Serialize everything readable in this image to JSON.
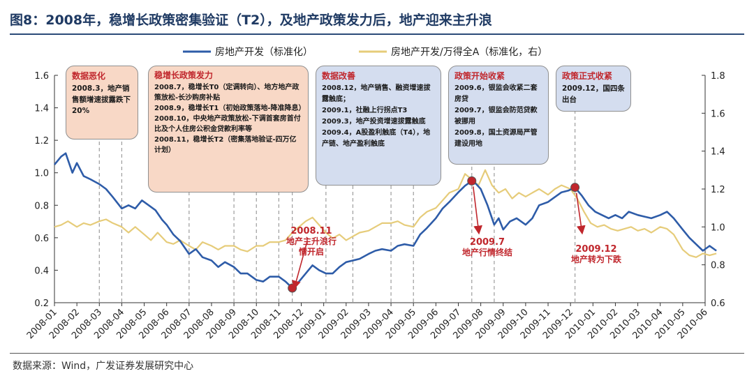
{
  "title": "图8：2008年，稳增长政策密集验证（T2），及地产政策发力后，地产迎来主升浪",
  "source": "数据来源：Wind，广发证券发展研究中心",
  "chart_data": {
    "type": "line",
    "x_labels": [
      "2008-01",
      "2008-02",
      "2008-03",
      "2008-04",
      "2008-05",
      "2008-06",
      "2008-07",
      "2008-08",
      "2008-09",
      "2008-10",
      "2008-11",
      "2008-12",
      "2009-01",
      "2009-02",
      "2009-03",
      "2009-04",
      "2009-05",
      "2009-06",
      "2009-07",
      "2009-08",
      "2009-09",
      "2009-10",
      "2009-11",
      "2009-12",
      "2010-01",
      "2010-02",
      "2010-03",
      "2010-04",
      "2010-05",
      "2010-06"
    ],
    "left_axis": {
      "ticks": [
        "0.2",
        "0.4",
        "0.6",
        "0.8",
        "1.0",
        "1.2",
        "1.4",
        "1.6"
      ],
      "ylim": [
        0.2,
        1.6
      ]
    },
    "right_axis": {
      "ticks": [
        "0.6",
        "0.8",
        "1.0",
        "1.2",
        "1.4",
        "1.6",
        "1.8"
      ],
      "ylim": [
        0.6,
        1.8
      ]
    },
    "series": [
      {
        "name": "房地产开发（标准化）",
        "axis": "left",
        "color": "#2e5ca8",
        "points": [
          [
            0,
            1.05
          ],
          [
            0.3,
            1.1
          ],
          [
            0.5,
            1.12
          ],
          [
            0.8,
            1.0
          ],
          [
            1.0,
            1.06
          ],
          [
            1.3,
            0.98
          ],
          [
            1.6,
            0.96
          ],
          [
            2.0,
            0.93
          ],
          [
            2.3,
            0.9
          ],
          [
            2.6,
            0.85
          ],
          [
            3.0,
            0.78
          ],
          [
            3.3,
            0.8
          ],
          [
            3.6,
            0.78
          ],
          [
            3.9,
            0.83
          ],
          [
            4.2,
            0.8
          ],
          [
            4.5,
            0.77
          ],
          [
            4.8,
            0.71
          ],
          [
            5.0,
            0.68
          ],
          [
            5.3,
            0.62
          ],
          [
            5.6,
            0.58
          ],
          [
            6.0,
            0.5
          ],
          [
            6.3,
            0.53
          ],
          [
            6.6,
            0.48
          ],
          [
            7.0,
            0.46
          ],
          [
            7.3,
            0.42
          ],
          [
            7.6,
            0.45
          ],
          [
            8.0,
            0.42
          ],
          [
            8.3,
            0.38
          ],
          [
            8.6,
            0.38
          ],
          [
            9.0,
            0.34
          ],
          [
            9.3,
            0.33
          ],
          [
            9.6,
            0.36
          ],
          [
            10.0,
            0.36
          ],
          [
            10.3,
            0.33
          ],
          [
            10.6,
            0.29
          ],
          [
            10.9,
            0.33
          ],
          [
            11.2,
            0.38
          ],
          [
            11.5,
            0.43
          ],
          [
            11.8,
            0.4
          ],
          [
            12.1,
            0.38
          ],
          [
            12.4,
            0.38
          ],
          [
            12.7,
            0.42
          ],
          [
            13.0,
            0.45
          ],
          [
            13.3,
            0.46
          ],
          [
            13.6,
            0.47
          ],
          [
            14.0,
            0.5
          ],
          [
            14.3,
            0.52
          ],
          [
            14.6,
            0.53
          ],
          [
            15.0,
            0.52
          ],
          [
            15.3,
            0.55
          ],
          [
            15.6,
            0.56
          ],
          [
            16.0,
            0.55
          ],
          [
            16.3,
            0.62
          ],
          [
            16.6,
            0.66
          ],
          [
            17.0,
            0.72
          ],
          [
            17.3,
            0.78
          ],
          [
            17.6,
            0.82
          ],
          [
            18.0,
            0.88
          ],
          [
            18.3,
            0.92
          ],
          [
            18.6,
            0.95
          ],
          [
            18.8,
            0.93
          ],
          [
            19.0,
            0.9
          ],
          [
            19.3,
            0.8
          ],
          [
            19.6,
            0.68
          ],
          [
            19.8,
            0.72
          ],
          [
            20.0,
            0.65
          ],
          [
            20.3,
            0.7
          ],
          [
            20.6,
            0.72
          ],
          [
            21.0,
            0.68
          ],
          [
            21.3,
            0.72
          ],
          [
            21.6,
            0.8
          ],
          [
            22.0,
            0.82
          ],
          [
            22.3,
            0.85
          ],
          [
            22.6,
            0.88
          ],
          [
            22.9,
            0.89
          ],
          [
            23.2,
            0.91
          ],
          [
            23.5,
            0.86
          ],
          [
            23.8,
            0.8
          ],
          [
            24.1,
            0.76
          ],
          [
            24.4,
            0.74
          ],
          [
            24.7,
            0.72
          ],
          [
            25.0,
            0.74
          ],
          [
            25.3,
            0.72
          ],
          [
            25.6,
            0.76
          ],
          [
            26.0,
            0.74
          ],
          [
            26.3,
            0.73
          ],
          [
            26.6,
            0.72
          ],
          [
            27.0,
            0.74
          ],
          [
            27.3,
            0.76
          ],
          [
            27.6,
            0.72
          ],
          [
            28.0,
            0.65
          ],
          [
            28.3,
            0.6
          ],
          [
            28.6,
            0.56
          ],
          [
            28.9,
            0.52
          ],
          [
            29.2,
            0.55
          ],
          [
            29.5,
            0.52
          ]
        ]
      },
      {
        "name": "房地产开发/万得全A（标准化，右）",
        "axis": "right",
        "color": "#e6cc7a",
        "points": [
          [
            0,
            1.0
          ],
          [
            0.3,
            1.01
          ],
          [
            0.6,
            1.03
          ],
          [
            1.0,
            1.0
          ],
          [
            1.3,
            1.02
          ],
          [
            1.6,
            1.01
          ],
          [
            2.0,
            1.03
          ],
          [
            2.3,
            1.04
          ],
          [
            2.6,
            1.02
          ],
          [
            3.0,
            1.0
          ],
          [
            3.3,
            0.97
          ],
          [
            3.6,
            1.0
          ],
          [
            4.0,
            0.96
          ],
          [
            4.3,
            0.93
          ],
          [
            4.6,
            0.97
          ],
          [
            5.0,
            0.92
          ],
          [
            5.3,
            0.91
          ],
          [
            5.6,
            0.93
          ],
          [
            6.0,
            0.9
          ],
          [
            6.3,
            0.88
          ],
          [
            6.6,
            0.92
          ],
          [
            7.0,
            0.9
          ],
          [
            7.3,
            0.88
          ],
          [
            7.6,
            0.9
          ],
          [
            8.0,
            0.9
          ],
          [
            8.3,
            0.88
          ],
          [
            8.6,
            0.87
          ],
          [
            9.0,
            0.9
          ],
          [
            9.3,
            0.9
          ],
          [
            9.6,
            0.92
          ],
          [
            10.0,
            0.92
          ],
          [
            10.3,
            0.93
          ],
          [
            10.6,
            0.97
          ],
          [
            10.9,
            1.0
          ],
          [
            11.2,
            1.03
          ],
          [
            11.5,
            1.05
          ],
          [
            11.8,
            1.01
          ],
          [
            12.1,
            0.97
          ],
          [
            12.4,
            0.94
          ],
          [
            12.7,
            0.96
          ],
          [
            13.0,
            0.93
          ],
          [
            13.3,
            0.95
          ],
          [
            13.6,
            0.97
          ],
          [
            14.0,
            0.98
          ],
          [
            14.3,
            1.0
          ],
          [
            14.6,
            1.02
          ],
          [
            15.0,
            1.02
          ],
          [
            15.3,
            1.03
          ],
          [
            15.6,
            1.01
          ],
          [
            16.0,
            1.0
          ],
          [
            16.3,
            1.05
          ],
          [
            16.6,
            1.08
          ],
          [
            17.0,
            1.1
          ],
          [
            17.3,
            1.14
          ],
          [
            17.6,
            1.18
          ],
          [
            18.0,
            1.2
          ],
          [
            18.3,
            1.28
          ],
          [
            18.6,
            1.25
          ],
          [
            18.9,
            1.22
          ],
          [
            19.2,
            1.3
          ],
          [
            19.5,
            1.22
          ],
          [
            19.8,
            1.18
          ],
          [
            20.1,
            1.2
          ],
          [
            20.4,
            1.15
          ],
          [
            20.7,
            1.18
          ],
          [
            21.0,
            1.16
          ],
          [
            21.3,
            1.18
          ],
          [
            21.6,
            1.2
          ],
          [
            22.0,
            1.17
          ],
          [
            22.3,
            1.2
          ],
          [
            22.6,
            1.22
          ],
          [
            23.0,
            1.2
          ],
          [
            23.3,
            1.15
          ],
          [
            23.6,
            1.08
          ],
          [
            23.9,
            1.02
          ],
          [
            24.2,
            1.0
          ],
          [
            24.5,
            1.01
          ],
          [
            24.8,
            0.99
          ],
          [
            25.1,
            0.98
          ],
          [
            25.4,
            0.99
          ],
          [
            25.7,
            1.0
          ],
          [
            26.0,
            0.98
          ],
          [
            26.3,
            0.99
          ],
          [
            26.6,
            0.97
          ],
          [
            27.0,
            1.0
          ],
          [
            27.3,
            0.99
          ],
          [
            27.6,
            0.96
          ],
          [
            28.0,
            0.88
          ],
          [
            28.3,
            0.85
          ],
          [
            28.6,
            0.84
          ],
          [
            28.9,
            0.86
          ],
          [
            29.2,
            0.85
          ],
          [
            29.5,
            0.86
          ]
        ]
      }
    ],
    "markers": [
      {
        "x": 10.6,
        "y": 0.29,
        "axis": "left",
        "color": "#c0262c"
      },
      {
        "x": 18.6,
        "y": 0.95,
        "axis": "left",
        "color": "#c0262c"
      },
      {
        "x": 23.2,
        "y": 0.91,
        "axis": "left",
        "color": "#c0262c"
      }
    ],
    "event_lines": [
      2.0,
      3.0,
      6.0,
      8.0,
      9.0,
      10.0,
      10.6,
      12.1,
      13.3,
      15.0,
      16.0,
      18.6,
      19.6,
      23.2
    ],
    "legend_position": "top-center",
    "grid": false
  },
  "notes": [
    {
      "id": "note-1",
      "style": "pink",
      "heading": "数据恶化",
      "lines": [
        "2008.3，地产销售额增速拔露跌下20%"
      ]
    },
    {
      "id": "note-2",
      "style": "pink",
      "heading": "稳增长政策发力",
      "lines": [
        "2008.7，稳增长T0（定调转向）、地方地产政策放松-长沙购房补贴",
        "2008.9，稳增长T1（初始政策落地-降准降息）",
        "2008.10，中央地产政策放松-下调首套房首付比及个人住房公积金贷款利率等",
        "2008.11，稳增长T2（密集落地验证-四万亿计划）"
      ]
    },
    {
      "id": "note-3",
      "style": "blue",
      "heading": "数据改善",
      "lines": [
        "2008.12，地产销售、融资增速拔露触底；",
        "2009.1，社融上行拐点T3",
        "2009.3，地产投资增速拔露触底",
        "2009.4，A股盈利触底（T4），地产链、地产盈利触底"
      ]
    },
    {
      "id": "note-4",
      "style": "blue",
      "heading": "政策开始收紧",
      "lines": [
        "2009.6，银监会收紧二套房贷",
        "2009.7，银监会防范贷款被挪用",
        "2009.8，国土资源局严管建设用地"
      ]
    },
    {
      "id": "note-5",
      "style": "blue",
      "heading": "政策正式收紧",
      "lines": [
        "2009.12，国四条出台"
      ]
    }
  ],
  "annotations": [
    {
      "date": "2008.11",
      "text": "地产主升浪行情开启"
    },
    {
      "date": "2009.7",
      "text": "地产行情终结"
    },
    {
      "date": "2009.12",
      "text": "地产转为下跌"
    }
  ]
}
